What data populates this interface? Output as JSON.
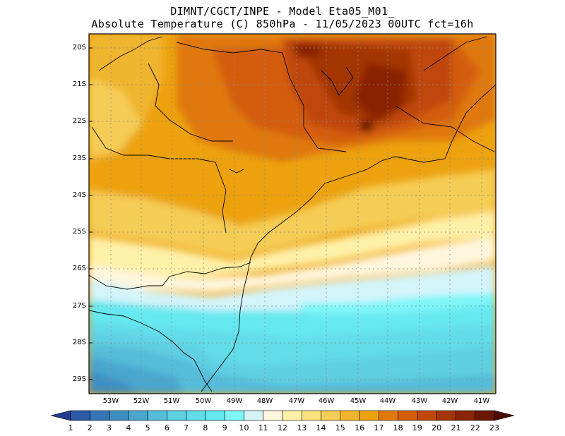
{
  "title": {
    "line1": "DIMNT/CGCT/INPE -  Model Eta05_M01_",
    "line2": "Absolute Temperature (C) 850hPa -  11/05/2023 00UTC fct=16h"
  },
  "axes": {
    "lat_labels": [
      "20S",
      "21S",
      "22S",
      "23S",
      "24S",
      "25S",
      "26S",
      "27S",
      "28S",
      "29S"
    ],
    "lon_labels": [
      "53W",
      "52W",
      "51W",
      "50W",
      "49W",
      "48W",
      "47W",
      "46W",
      "45W",
      "44W",
      "43W",
      "42W",
      "41W"
    ]
  },
  "colorbar": {
    "labels": [
      "1",
      "2",
      "3",
      "4",
      "5",
      "6",
      "7",
      "8",
      "9",
      "10",
      "11",
      "12",
      "13",
      "14",
      "15",
      "16",
      "17",
      "18",
      "19",
      "20",
      "21",
      "22",
      "23"
    ],
    "colors": [
      "#253b8f",
      "#2b5aa6",
      "#3675b6",
      "#3e8ec3",
      "#4aa6cf",
      "#55bcd9",
      "#5fcfe2",
      "#62dce9",
      "#66e8f0",
      "#7ef6f9",
      "#d4f4fa",
      "#fff6dd",
      "#fff0a8",
      "#fbe27e",
      "#f5cc55",
      "#f0b52e",
      "#eda210",
      "#e0780c",
      "#d35d08",
      "#bf4707",
      "#a33406",
      "#8a2405",
      "#6a1505",
      "#4a0c03"
    ]
  },
  "legend_colors": {
    "cold_edge": "#1c2f86",
    "warm_edge": "#3e0a02"
  }
}
